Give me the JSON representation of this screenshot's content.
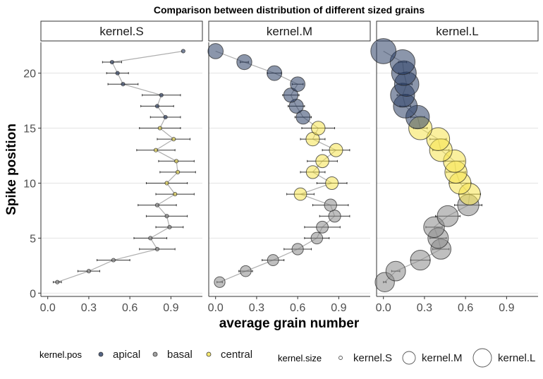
{
  "chart_data": {
    "type": "scatter",
    "title": "Comparison between distribution of different sized grains",
    "xlabel": "average grain number",
    "ylabel": "Spike position",
    "xlim": [
      -0.05,
      1.13
    ],
    "ylim": [
      -0.3,
      22.8
    ],
    "x_ticks": [
      "0.0",
      "0.3",
      "0.6",
      "0.9"
    ],
    "x_tick_values": [
      0.0,
      0.3,
      0.6,
      0.9
    ],
    "y_ticks": [
      "0",
      "5",
      "10",
      "15",
      "20"
    ],
    "y_tick_values": [
      0,
      5,
      10,
      15,
      20
    ],
    "grid": true,
    "colors": {
      "apical": "#2b3f66",
      "basal": "#8a8a8a",
      "central": "#f5e34f"
    },
    "legend": {
      "position": "bottom",
      "pos_title": "kernel.pos",
      "pos_items": [
        "apical",
        "basal",
        "central"
      ],
      "size_title": "kernel.size",
      "size_items": [
        "kernel.S",
        "kernel.M",
        "kernel.L"
      ]
    },
    "panels": [
      {
        "name": "kernel.S",
        "points": [
          {
            "y": 1,
            "x": 0.07,
            "err": 0.03,
            "pos": "basal"
          },
          {
            "y": 2,
            "x": 0.3,
            "err": 0.08,
            "pos": "basal"
          },
          {
            "y": 3,
            "x": 0.48,
            "err": 0.12,
            "pos": "basal"
          },
          {
            "y": 4,
            "x": 0.8,
            "err": 0.13,
            "pos": "basal"
          },
          {
            "y": 5,
            "x": 0.75,
            "err": 0.12,
            "pos": "basal"
          },
          {
            "y": 6,
            "x": 0.89,
            "err": 0.1,
            "pos": "basal"
          },
          {
            "y": 7,
            "x": 0.87,
            "err": 0.15,
            "pos": "basal"
          },
          {
            "y": 8,
            "x": 0.8,
            "err": 0.14,
            "pos": "basal"
          },
          {
            "y": 9,
            "x": 0.93,
            "err": 0.14,
            "pos": "central"
          },
          {
            "y": 10,
            "x": 0.87,
            "err": 0.15,
            "pos": "central"
          },
          {
            "y": 11,
            "x": 0.95,
            "err": 0.13,
            "pos": "central"
          },
          {
            "y": 12,
            "x": 0.94,
            "err": 0.13,
            "pos": "central"
          },
          {
            "y": 13,
            "x": 0.79,
            "err": 0.14,
            "pos": "central"
          },
          {
            "y": 14,
            "x": 0.92,
            "err": 0.12,
            "pos": "central"
          },
          {
            "y": 15,
            "x": 0.82,
            "err": 0.15,
            "pos": "central"
          },
          {
            "y": 16,
            "x": 0.86,
            "err": 0.11,
            "pos": "apical"
          },
          {
            "y": 17,
            "x": 0.8,
            "err": 0.12,
            "pos": "apical"
          },
          {
            "y": 18,
            "x": 0.83,
            "err": 0.14,
            "pos": "apical"
          },
          {
            "y": 19,
            "x": 0.55,
            "err": 0.11,
            "pos": "apical"
          },
          {
            "y": 20,
            "x": 0.51,
            "err": 0.08,
            "pos": "apical"
          },
          {
            "y": 21,
            "x": 0.47,
            "err": 0.07,
            "pos": "apical"
          },
          {
            "y": 22,
            "x": 0.99,
            "err": 0.0,
            "pos": "apical"
          }
        ]
      },
      {
        "name": "kernel.M",
        "points": [
          {
            "y": 1,
            "x": 0.03,
            "err": 0.02,
            "pos": "basal"
          },
          {
            "y": 2,
            "x": 0.22,
            "err": 0.05,
            "pos": "basal"
          },
          {
            "y": 3,
            "x": 0.42,
            "err": 0.08,
            "pos": "basal"
          },
          {
            "y": 4,
            "x": 0.6,
            "err": 0.1,
            "pos": "basal"
          },
          {
            "y": 5,
            "x": 0.74,
            "err": 0.09,
            "pos": "basal"
          },
          {
            "y": 6,
            "x": 0.78,
            "err": 0.13,
            "pos": "basal"
          },
          {
            "y": 7,
            "x": 0.87,
            "err": 0.11,
            "pos": "basal"
          },
          {
            "y": 8,
            "x": 0.84,
            "err": 0.13,
            "pos": "basal"
          },
          {
            "y": 9,
            "x": 0.62,
            "err": 0.1,
            "pos": "central"
          },
          {
            "y": 10,
            "x": 0.85,
            "err": 0.11,
            "pos": "central"
          },
          {
            "y": 11,
            "x": 0.71,
            "err": 0.09,
            "pos": "central"
          },
          {
            "y": 12,
            "x": 0.78,
            "err": 0.11,
            "pos": "central"
          },
          {
            "y": 13,
            "x": 0.88,
            "err": 0.1,
            "pos": "central"
          },
          {
            "y": 14,
            "x": 0.71,
            "err": 0.09,
            "pos": "central"
          },
          {
            "y": 15,
            "x": 0.75,
            "err": 0.12,
            "pos": "central"
          },
          {
            "y": 16,
            "x": 0.64,
            "err": 0.06,
            "pos": "apical"
          },
          {
            "y": 17,
            "x": 0.59,
            "err": 0.06,
            "pos": "apical"
          },
          {
            "y": 18,
            "x": 0.55,
            "err": 0.06,
            "pos": "apical"
          },
          {
            "y": 19,
            "x": 0.6,
            "err": 0.04,
            "pos": "apical"
          },
          {
            "y": 20,
            "x": 0.43,
            "err": 0.05,
            "pos": "apical"
          },
          {
            "y": 21,
            "x": 0.21,
            "err": 0.03,
            "pos": "apical"
          },
          {
            "y": 22,
            "x": 0.0,
            "err": 0.0,
            "pos": "apical"
          }
        ]
      },
      {
        "name": "kernel.L",
        "points": [
          {
            "y": 1,
            "x": 0.01,
            "err": 0.01,
            "pos": "basal"
          },
          {
            "y": 2,
            "x": 0.09,
            "err": 0.03,
            "pos": "basal"
          },
          {
            "y": 3,
            "x": 0.27,
            "err": 0.07,
            "pos": "basal"
          },
          {
            "y": 4,
            "x": 0.42,
            "err": 0.06,
            "pos": "basal"
          },
          {
            "y": 5,
            "x": 0.4,
            "err": 0.06,
            "pos": "basal"
          },
          {
            "y": 6,
            "x": 0.37,
            "err": 0.06,
            "pos": "basal"
          },
          {
            "y": 7,
            "x": 0.47,
            "err": 0.09,
            "pos": "basal"
          },
          {
            "y": 8,
            "x": 0.62,
            "err": 0.1,
            "pos": "basal"
          },
          {
            "y": 9,
            "x": 0.63,
            "err": 0.08,
            "pos": "central"
          },
          {
            "y": 10,
            "x": 0.56,
            "err": 0.08,
            "pos": "central"
          },
          {
            "y": 11,
            "x": 0.53,
            "err": 0.07,
            "pos": "central"
          },
          {
            "y": 12,
            "x": 0.52,
            "err": 0.07,
            "pos": "central"
          },
          {
            "y": 13,
            "x": 0.42,
            "err": 0.06,
            "pos": "central"
          },
          {
            "y": 14,
            "x": 0.4,
            "err": 0.06,
            "pos": "central"
          },
          {
            "y": 15,
            "x": 0.27,
            "err": 0.05,
            "pos": "central"
          },
          {
            "y": 16,
            "x": 0.25,
            "err": 0.05,
            "pos": "apical"
          },
          {
            "y": 17,
            "x": 0.16,
            "err": 0.04,
            "pos": "apical"
          },
          {
            "y": 18,
            "x": 0.14,
            "err": 0.04,
            "pos": "apical"
          },
          {
            "y": 19,
            "x": 0.17,
            "err": 0.04,
            "pos": "apical"
          },
          {
            "y": 20,
            "x": 0.15,
            "err": 0.04,
            "pos": "apical"
          },
          {
            "y": 21,
            "x": 0.14,
            "err": 0.03,
            "pos": "apical"
          },
          {
            "y": 22,
            "x": 0.0,
            "err": 0.0,
            "pos": "apical"
          }
        ]
      }
    ]
  }
}
